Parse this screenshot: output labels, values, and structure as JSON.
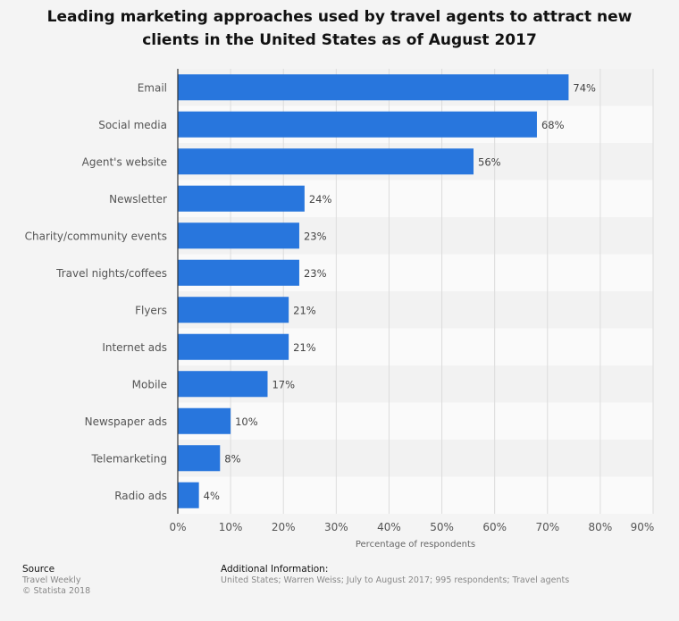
{
  "title": "Leading marketing approaches used by travel agents to attract new clients in the United States as of August 2017",
  "chart_data": {
    "type": "bar",
    "orientation": "horizontal",
    "categories": [
      "Email",
      "Social media",
      "Agent's website",
      "Newsletter",
      "Charity/community events",
      "Travel nights/coffees",
      "Flyers",
      "Internet ads",
      "Mobile",
      "Newspaper ads",
      "Telemarketing",
      "Radio ads"
    ],
    "values": [
      74,
      68,
      56,
      24,
      23,
      23,
      21,
      21,
      17,
      10,
      8,
      4
    ],
    "value_labels": [
      "74%",
      "68%",
      "56%",
      "24%",
      "23%",
      "23%",
      "21%",
      "21%",
      "17%",
      "10%",
      "8%",
      "4%"
    ],
    "xlabel": "Percentage of respondents",
    "xlim": [
      0,
      90
    ],
    "xticks": [
      0,
      10,
      20,
      30,
      40,
      50,
      60,
      70,
      80,
      90
    ],
    "xtick_labels": [
      "0%",
      "10%",
      "20%",
      "30%",
      "40%",
      "50%",
      "60%",
      "70%",
      "80%",
      "90%"
    ],
    "grid": true,
    "bar_color": "#2876dd"
  },
  "footer": {
    "source_heading": "Source",
    "source_line1": "Travel Weekly",
    "source_line2": "© Statista 2018",
    "info_heading": "Additional Information:",
    "info_text": "United States; Warren Weiss; July to August 2017; 995 respondents; Travel agents"
  }
}
